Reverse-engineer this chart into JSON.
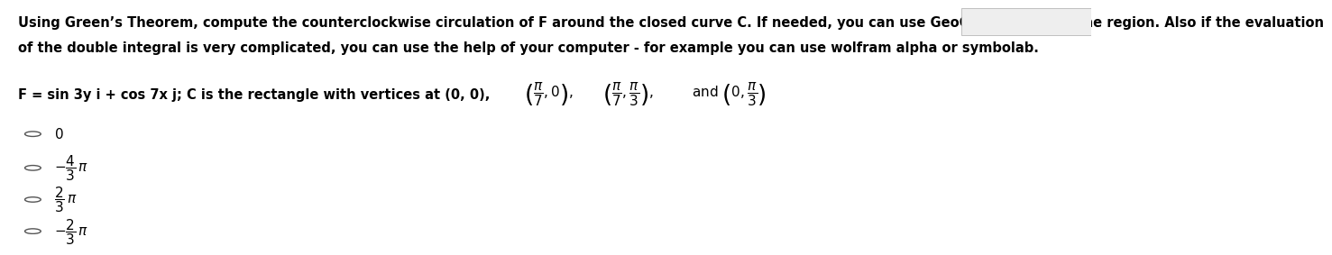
{
  "background_color": "#ffffff",
  "instruction_line1": "Using Green’s Theorem, compute the counterclockwise circulation of F around the closed curve C. If needed, you can use GeoGebra to graph the region. Also if the evaluation",
  "instruction_line2": "of the double integral is very complicated, you can use the help of your computer - for example you can use wolfram alpha or symbolab.",
  "problem_prefix": "F = sin 3y i + cos 7x j; C is the rectangle with vertices at (0, 0),",
  "vertex1": "\\left(\\dfrac{\\pi}{7}, 0\\right)",
  "vertex2": "\\left(\\dfrac{\\pi}{7}, \\dfrac{\\pi}{3}\\right)",
  "vertex3": "\\left(0, \\dfrac{\\pi}{3}\\right)",
  "option0": "0",
  "option1": "-\\dfrac{4}{3}\\,\\pi",
  "option2": "\\dfrac{2}{3}\\,\\pi",
  "option3": "-\\dfrac{2}{3}\\,\\pi",
  "top_bar_color": "#cccccc",
  "font_size_instruction": 10.5,
  "font_size_problem": 10.5,
  "font_size_options": 11
}
